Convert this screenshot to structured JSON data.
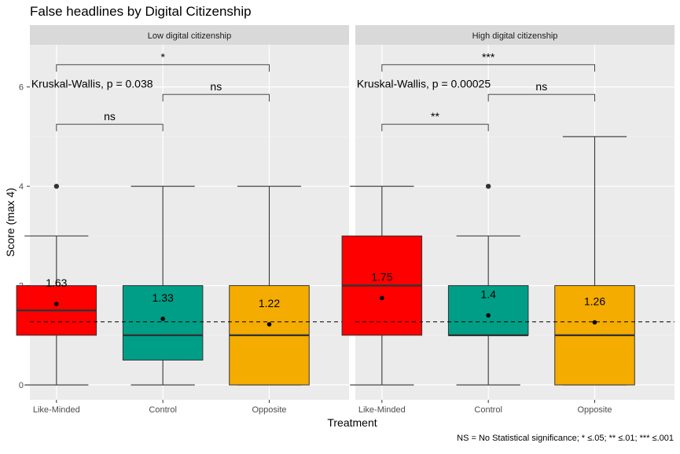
{
  "chart_data": {
    "type": "box",
    "title": "False headlines by Digital Citizenship",
    "xlabel": "Treatment",
    "ylabel": "Score (max 4)",
    "caption": "NS = No Statistical significance; * ≤.05; ** ≤.01; *** ≤.001",
    "ylim": [
      -0.3,
      6.85
    ],
    "yticks": [
      0,
      2,
      4,
      6
    ],
    "yticklabels": [
      "0",
      "2",
      "4",
      "6"
    ],
    "categories": [
      "Like-Minded",
      "Control",
      "Opposite"
    ],
    "colors": [
      "#ff0000",
      "#009e87",
      "#f5ac00"
    ],
    "reference_line": 1.27,
    "panels": [
      {
        "label": "Low digital citizenship",
        "kruskal": "Kruskal-Wallis, p = 0.038",
        "boxes": [
          {
            "min": 0,
            "q1": 1,
            "median": 1.5,
            "q3": 2,
            "max": 3,
            "mean": 1.63,
            "mean_label": "1.63",
            "outliers": [
              4
            ]
          },
          {
            "min": 0,
            "q1": 0.5,
            "median": 1,
            "q3": 2,
            "max": 4,
            "mean": 1.33,
            "mean_label": "1.33",
            "outliers": []
          },
          {
            "min": 0,
            "q1": 0,
            "median": 1,
            "q3": 2,
            "max": 4,
            "mean": 1.22,
            "mean_label": "1.22",
            "outliers": []
          }
        ],
        "comparisons": [
          {
            "from": 0,
            "to": 1,
            "label": "ns",
            "y": 5.25
          },
          {
            "from": 1,
            "to": 2,
            "label": "ns",
            "y": 5.85
          },
          {
            "from": 0,
            "to": 2,
            "label": "*",
            "y": 6.45
          }
        ]
      },
      {
        "label": "High digital citizenship",
        "kruskal": "Kruskal-Wallis, p = 0.00025",
        "boxes": [
          {
            "min": 0,
            "q1": 1,
            "median": 2,
            "q3": 3,
            "max": 4,
            "mean": 1.75,
            "mean_label": "1.75",
            "outliers": []
          },
          {
            "min": 0,
            "q1": 1,
            "median": 1,
            "q3": 2,
            "max": 3,
            "mean": 1.4,
            "mean_label": "1.4",
            "outliers": [
              4
            ]
          },
          {
            "min": 0,
            "q1": 0,
            "median": 1,
            "q3": 2,
            "max": 5,
            "mean": 1.26,
            "mean_label": "1.26",
            "outliers": []
          }
        ],
        "comparisons": [
          {
            "from": 0,
            "to": 1,
            "label": "**",
            "y": 5.25
          },
          {
            "from": 1,
            "to": 2,
            "label": "ns",
            "y": 5.85
          },
          {
            "from": 0,
            "to": 2,
            "label": "***",
            "y": 6.45
          }
        ]
      }
    ]
  }
}
